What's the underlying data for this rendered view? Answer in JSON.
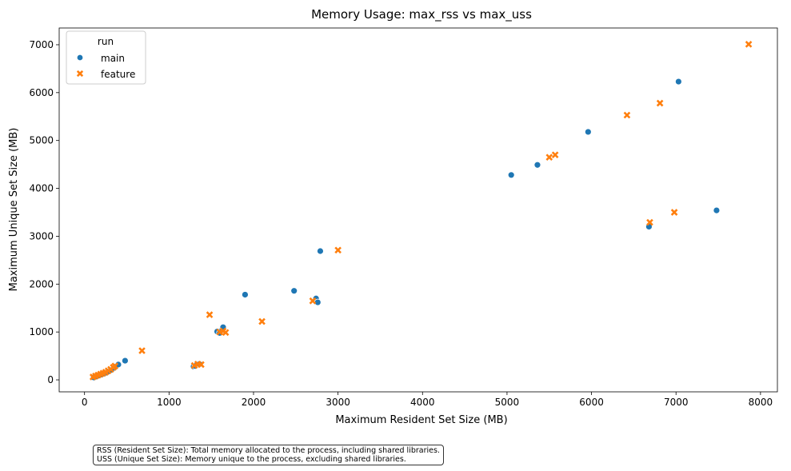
{
  "chart_data": {
    "type": "scatter",
    "title": "Memory Usage: max_rss vs max_uss",
    "xlabel": "Maximum Resident Set Size (MB)",
    "ylabel": "Maximum Unique Set Size (MB)",
    "xlim": [
      -300,
      8200
    ],
    "ylim": [
      -250,
      7350
    ],
    "xticks": [
      0,
      1000,
      2000,
      3000,
      4000,
      5000,
      6000,
      7000,
      8000
    ],
    "xtick_labels": [
      "0",
      "1000",
      "2000",
      "3000",
      "4000",
      "5000",
      "6000",
      "7000",
      "8000"
    ],
    "yticks": [
      0,
      1000,
      2000,
      3000,
      4000,
      5000,
      6000,
      7000
    ],
    "ytick_labels": [
      "0",
      "1000",
      "2000",
      "3000",
      "4000",
      "5000",
      "6000",
      "7000"
    ],
    "grid": false,
    "legend": {
      "title": "run",
      "placement": "top-left"
    },
    "series": [
      {
        "name": "main",
        "marker": "circle",
        "color": "#1f77b4",
        "points": [
          [
            110,
            50
          ],
          [
            140,
            70
          ],
          [
            170,
            90
          ],
          [
            200,
            110
          ],
          [
            230,
            130
          ],
          [
            260,
            150
          ],
          [
            290,
            180
          ],
          [
            320,
            210
          ],
          [
            350,
            250
          ],
          [
            370,
            280
          ],
          [
            400,
            320
          ],
          [
            480,
            400
          ],
          [
            1290,
            280
          ],
          [
            1310,
            290
          ],
          [
            1330,
            320
          ],
          [
            1360,
            330
          ],
          [
            1570,
            1010
          ],
          [
            1600,
            980
          ],
          [
            1630,
            1050
          ],
          [
            1640,
            1100
          ],
          [
            1900,
            1780
          ],
          [
            2480,
            1860
          ],
          [
            2740,
            1700
          ],
          [
            2760,
            1620
          ],
          [
            2790,
            2690
          ],
          [
            5050,
            4280
          ],
          [
            5360,
            4490
          ],
          [
            5960,
            5180
          ],
          [
            6680,
            3200
          ],
          [
            7030,
            6230
          ],
          [
            7480,
            3540
          ]
        ]
      },
      {
        "name": "feature",
        "marker": "x",
        "color": "#ff7f0e",
        "points": [
          [
            100,
            60
          ],
          [
            130,
            80
          ],
          [
            160,
            100
          ],
          [
            190,
            120
          ],
          [
            220,
            140
          ],
          [
            250,
            160
          ],
          [
            280,
            190
          ],
          [
            310,
            220
          ],
          [
            340,
            260
          ],
          [
            360,
            290
          ],
          [
            680,
            610
          ],
          [
            1300,
            300
          ],
          [
            1340,
            330
          ],
          [
            1380,
            320
          ],
          [
            1480,
            1360
          ],
          [
            1600,
            1000
          ],
          [
            1640,
            1020
          ],
          [
            1670,
            990
          ],
          [
            2100,
            1220
          ],
          [
            2700,
            1650
          ],
          [
            3000,
            2710
          ],
          [
            5500,
            4650
          ],
          [
            5570,
            4700
          ],
          [
            6420,
            5530
          ],
          [
            6690,
            3290
          ],
          [
            6810,
            5780
          ],
          [
            6980,
            3500
          ],
          [
            7860,
            7010
          ]
        ]
      }
    ],
    "annotation_lines": [
      "RSS (Resident Set Size): Total memory allocated to the process, including shared libraries.",
      "USS (Unique Set Size): Memory unique to the process, excluding shared libraries."
    ]
  }
}
